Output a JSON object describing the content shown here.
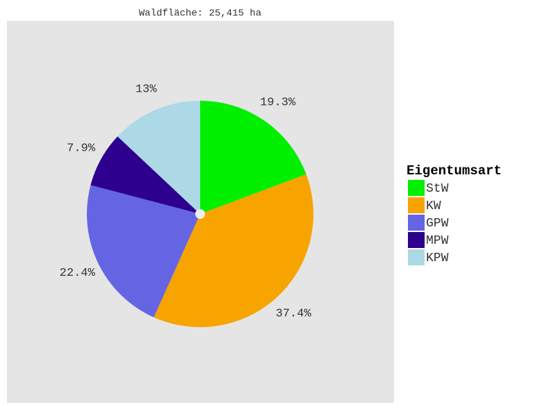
{
  "chart_data": {
    "type": "pie",
    "title": "Waldfläche: 25,415 ha",
    "legend_title": "Eigentumsart",
    "categories": [
      "StW",
      "KW",
      "GPW",
      "MPW",
      "KPW"
    ],
    "values": [
      19.3,
      37.4,
      22.4,
      7.9,
      13
    ],
    "value_labels": [
      "19.3%",
      "37.4%",
      "22.4%",
      "7.9%",
      "13%"
    ],
    "colors": [
      "#00f000",
      "#f7a400",
      "#6565e3",
      "#2d008e",
      "#add8e6"
    ],
    "legend": "right"
  }
}
